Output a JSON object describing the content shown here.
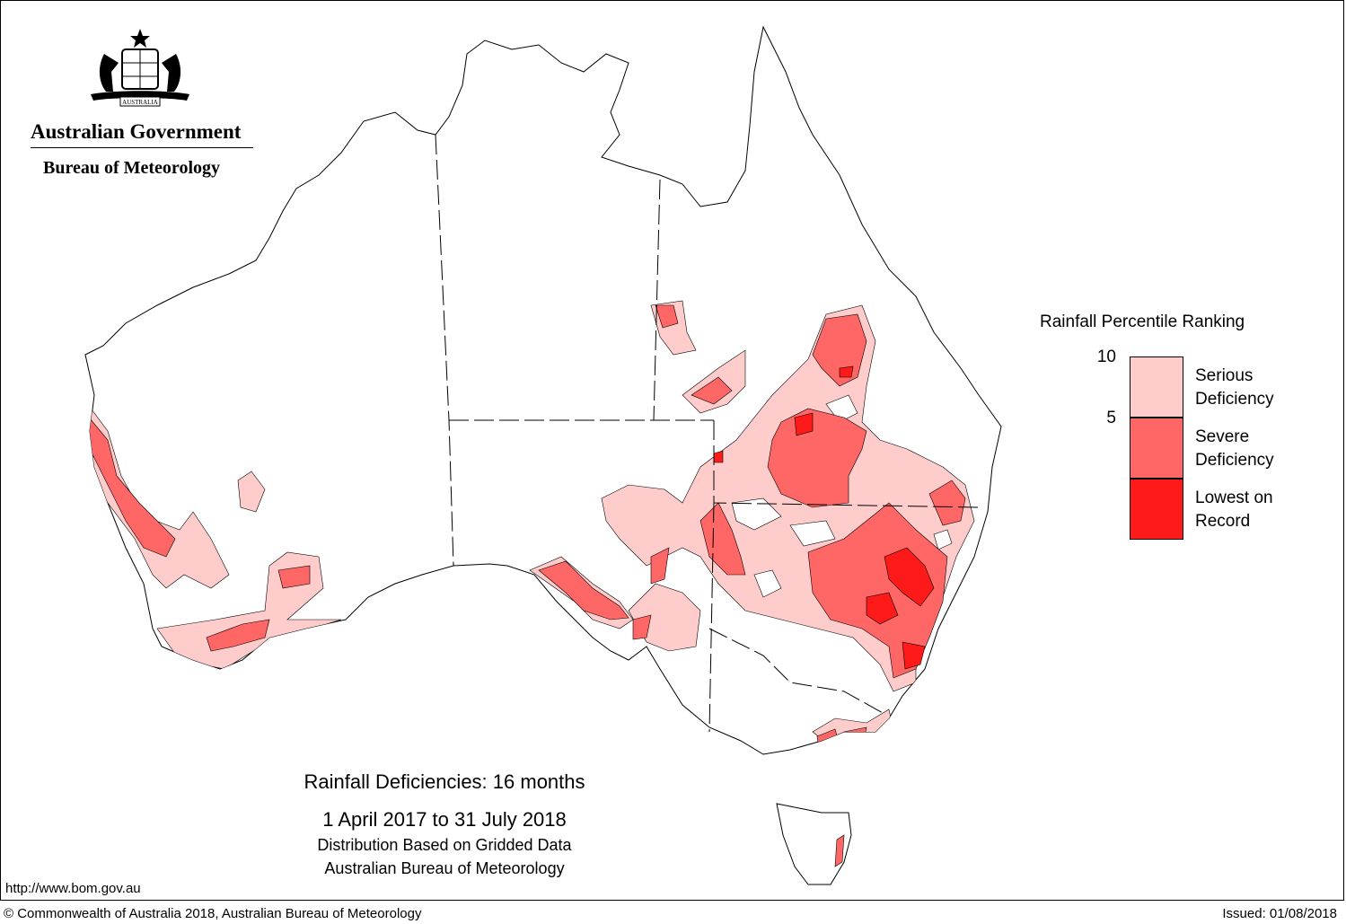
{
  "header": {
    "org_name": "Australian Government",
    "bureau_name": "Bureau of Meteorology",
    "crest_motto": "AUSTRALIA"
  },
  "map": {
    "title": "Rainfall Deficiencies: 16 months",
    "period": "1 April 2017 to 31 July 2018",
    "note1": "Distribution Based on Gridded Data",
    "note2": "Australian Bureau of Meteorology"
  },
  "legend": {
    "title": "Rainfall Percentile Ranking",
    "ticks": [
      "10",
      "5"
    ],
    "items": [
      {
        "label_line1": "Serious",
        "label_line2": "Deficiency",
        "color": "#ffcccc"
      },
      {
        "label_line1": "Severe",
        "label_line2": "Deficiency",
        "color": "#ff6666"
      },
      {
        "label_line1": "Lowest on",
        "label_line2": "Record",
        "color": "#ff1a1a"
      }
    ]
  },
  "footer": {
    "url": "http://www.bom.gov.au",
    "copyright": "© Commonwealth of Australia 2018, Australian Bureau of Meteorology",
    "issued": "Issued: 01/08/2018"
  }
}
